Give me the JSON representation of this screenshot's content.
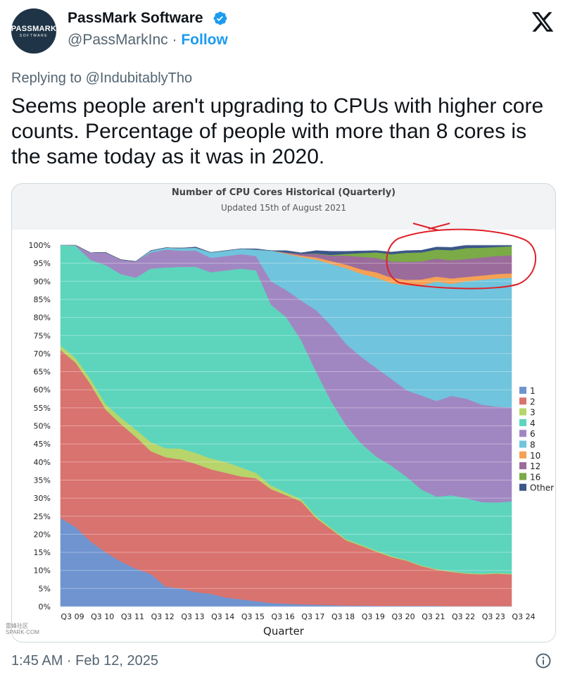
{
  "account": {
    "avatar_line1": "PASSMARK",
    "avatar_line2": "SOFTWARE",
    "name": "PassMark Software",
    "handle": "@PassMarkInc",
    "follow": "Follow"
  },
  "replying_prefix": "Replying to ",
  "replying_to": "@IndubitablyTho",
  "tweet_text": "Seems people aren't upgrading to CPUs with higher core counts. Percentage of people with more than 8 cores is the same today as it was in 2020.",
  "timestamp": "1:45 AM · Feb 12, 2025",
  "watermark": [
    "雷",
    "峰",
    "社",
    "区",
    "SPARK·COM"
  ],
  "colors": {
    "link": "#1d9bf0",
    "verified": "#1d9bf0",
    "annotation": "#e0202a"
  },
  "icons": [
    "verified-badge-icon",
    "x-logo-icon",
    "info-icon"
  ],
  "chart_data": {
    "type": "area",
    "stacked": true,
    "title": "Number of CPU Cores Historical (Quarterly)",
    "subtitle": "Updated 15th of August 2021",
    "xlabel": "Quarter",
    "ylabel": "",
    "ylim": [
      0,
      100
    ],
    "yticks": [
      0,
      5,
      10,
      15,
      20,
      25,
      30,
      35,
      40,
      45,
      50,
      55,
      60,
      65,
      70,
      75,
      80,
      85,
      90,
      95,
      100
    ],
    "ytick_suffix": "%",
    "x_tick_labels": [
      "Q3 09",
      "Q3 10",
      "Q3 11",
      "Q3 12",
      "Q3 13",
      "Q3 14",
      "Q3 15",
      "Q3 16",
      "Q3 17",
      "Q3 18",
      "Q3 19",
      "Q3 20",
      "Q3 21",
      "Q3 22",
      "Q3 23",
      "Q3 24"
    ],
    "x": [
      2009.5,
      2010,
      2010.5,
      2011,
      2011.5,
      2012,
      2012.5,
      2013,
      2013.5,
      2014,
      2014.5,
      2015,
      2015.5,
      2016,
      2016.5,
      2017,
      2017.5,
      2018,
      2018.5,
      2019,
      2019.5,
      2020,
      2020.5,
      2021,
      2021.5,
      2022,
      2022.5,
      2023,
      2023.5,
      2024,
      2024.5
    ],
    "legend_position": "right",
    "series": [
      {
        "name": "1",
        "color": "#6f94cf",
        "values": [
          24.5,
          22,
          18,
          15,
          12.5,
          10.5,
          9,
          5.5,
          5,
          4,
          3.5,
          2.5,
          2,
          1.5,
          1,
          0.8,
          0.6,
          0.5,
          0.4,
          0.3,
          0.3,
          0.2,
          0.2,
          0.2,
          0.2,
          0.2,
          0.1,
          0.1,
          0.1,
          0.1,
          0.1
        ]
      },
      {
        "name": "2",
        "color": "#d9736f",
        "values": [
          46.5,
          45.5,
          43.5,
          39.5,
          38,
          36.5,
          34,
          35.8,
          35.7,
          35.5,
          34.5,
          34.5,
          34,
          34,
          31.5,
          30,
          28.5,
          24,
          21,
          18,
          16.5,
          15,
          13.5,
          12.5,
          11,
          10,
          9.5,
          9,
          8.8,
          9,
          8.8
        ]
      },
      {
        "name": "3",
        "color": "#b7d56a",
        "values": [
          1.2,
          1.3,
          1.4,
          1.5,
          1.8,
          2,
          2.5,
          2.5,
          3,
          3,
          3,
          3,
          2.5,
          1.5,
          1,
          0.8,
          0.6,
          0.5,
          0.4,
          0.3,
          0.3,
          0.3,
          0.3,
          0.2,
          0.2,
          0.2,
          0.2,
          0.2,
          0.2,
          0.2,
          0.2
        ]
      },
      {
        "name": "4",
        "color": "#5dd5bd",
        "values": [
          27.8,
          31,
          33,
          38.5,
          39.7,
          42,
          48,
          50,
          50.3,
          51.5,
          51.5,
          53,
          55,
          56,
          50,
          48.5,
          44,
          40,
          35,
          31.5,
          28,
          26,
          25,
          23,
          21,
          20,
          21,
          20.7,
          19.8,
          19.5,
          20
        ]
      },
      {
        "name": "6",
        "color": "#a187c2",
        "values": [
          0,
          0.2,
          2,
          3.5,
          4,
          4.5,
          4.5,
          5,
          4.5,
          4.5,
          4,
          4,
          4,
          4,
          6.5,
          7.5,
          11,
          17,
          21,
          22.5,
          24,
          24.5,
          24,
          24,
          26,
          26.5,
          27.5,
          27.5,
          27,
          26.5,
          26
        ]
      },
      {
        "name": "8",
        "color": "#70c4dd",
        "values": [
          0,
          0,
          0,
          0,
          0,
          0,
          0.5,
          0.5,
          0.7,
          0.8,
          1.5,
          1.5,
          1.5,
          1.8,
          8.5,
          10,
          12,
          14,
          17,
          21,
          23,
          25,
          26.5,
          29,
          30.5,
          33,
          31,
          32.5,
          34.5,
          35.5,
          35.9
        ]
      },
      {
        "name": "10",
        "color": "#f5a154",
        "values": [
          0,
          0,
          0,
          0,
          0,
          0,
          0,
          0,
          0,
          0,
          0,
          0,
          0,
          0,
          0,
          0.2,
          0.4,
          0.6,
          0.8,
          1,
          1.2,
          1.5,
          1.5,
          1.5,
          1.6,
          1.4,
          1.5,
          1.2,
          1.2,
          1.2,
          1.2
        ]
      },
      {
        "name": "12",
        "color": "#9b6b9b",
        "values": [
          0,
          0,
          0,
          0,
          0,
          0,
          0,
          0,
          0,
          0,
          0,
          0,
          0,
          0,
          0,
          0.2,
          0.5,
          1,
          1.5,
          2.5,
          3.5,
          4,
          4.5,
          5,
          5,
          5,
          5,
          5,
          5,
          5,
          5
        ]
      },
      {
        "name": "16",
        "color": "#7aab47",
        "values": [
          0,
          0,
          0,
          0,
          0,
          0,
          0,
          0,
          0,
          0,
          0,
          0,
          0,
          0,
          0,
          0,
          0,
          0.1,
          0.2,
          0.5,
          1,
          1.5,
          2,
          2.5,
          2.5,
          2.5,
          2.8,
          3,
          2.7,
          2.5,
          2.5
        ]
      },
      {
        "name": "Other",
        "color": "#3b5688",
        "values": [
          0,
          0,
          0,
          0,
          0,
          0,
          0,
          0,
          0,
          0.2,
          0,
          0,
          0,
          0.2,
          0,
          0.5,
          0.3,
          0.8,
          1,
          0.7,
          0.6,
          0.5,
          0.6,
          0.6,
          0.6,
          0.7,
          0.8,
          0.8,
          0.8,
          0.8,
          0.6
        ]
      }
    ]
  }
}
